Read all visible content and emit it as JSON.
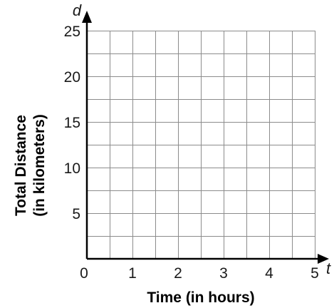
{
  "chart_data": {
    "type": "line",
    "title": "",
    "xlabel": "Time (in hours)",
    "ylabel_lines": [
      "Total Distance",
      "(in kilometers)"
    ],
    "x_var": "t",
    "y_var": "d",
    "xlim": [
      0,
      5
    ],
    "ylim": [
      0,
      25
    ],
    "x_ticks": [
      0,
      1,
      2,
      3,
      4,
      5
    ],
    "y_ticks": [
      5,
      10,
      15,
      20,
      25
    ],
    "x_minor_step": 0.5,
    "y_minor_step": 2.5,
    "grid": true,
    "series": []
  }
}
